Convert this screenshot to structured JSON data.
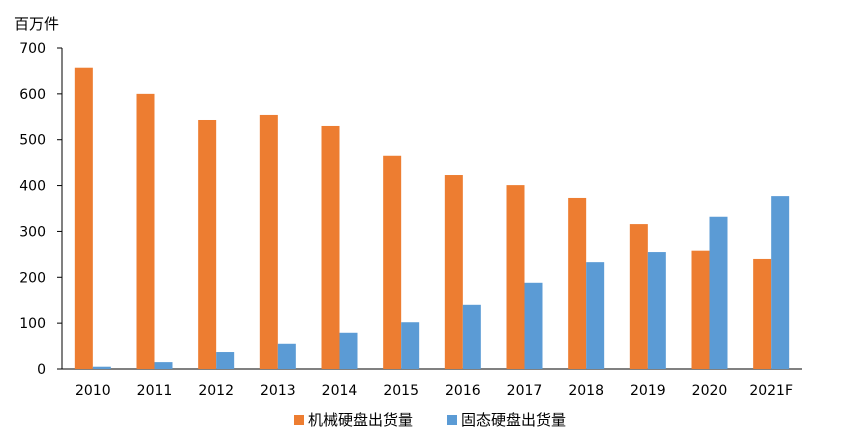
{
  "chart_data": {
    "type": "bar",
    "title": "",
    "ylabel": "百万件",
    "xlabel": "",
    "categories": [
      "2010",
      "2011",
      "2012",
      "2013",
      "2014",
      "2015",
      "2016",
      "2017",
      "2018",
      "2019",
      "2020",
      "2021F"
    ],
    "series": [
      {
        "name": "机械硬盘出货量",
        "color": "#ED7D31",
        "values": [
          657,
          600,
          543,
          554,
          530,
          465,
          423,
          401,
          373,
          316,
          258,
          240
        ]
      },
      {
        "name": "固态硬盘出货量",
        "color": "#5B9BD5",
        "values": [
          5,
          15,
          37,
          55,
          79,
          102,
          140,
          188,
          233,
          255,
          332,
          377
        ]
      }
    ],
    "ylim": [
      0,
      700
    ],
    "yticks": [
      "0",
      "100",
      "200",
      "300",
      "400",
      "500",
      "600",
      "700"
    ],
    "grid": false,
    "legend_position": "bottom"
  }
}
